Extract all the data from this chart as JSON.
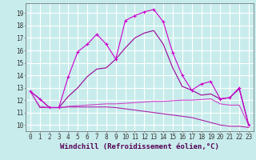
{
  "title": "",
  "xlabel": "Windchill (Refroidissement éolien,°C)",
  "background_color": "#c8ecec",
  "grid_color": "#ffffff",
  "line1": {
    "x": [
      0,
      1,
      2,
      3,
      4,
      5,
      6,
      7,
      8,
      9,
      10,
      11,
      12,
      13,
      14,
      15,
      16,
      17,
      18,
      19,
      20,
      21,
      22,
      23
    ],
    "y": [
      12.7,
      12.1,
      11.4,
      11.4,
      13.9,
      15.9,
      16.5,
      17.3,
      16.5,
      15.3,
      18.4,
      18.8,
      19.1,
      19.3,
      18.3,
      15.8,
      14.0,
      12.8,
      13.3,
      13.5,
      12.1,
      12.2,
      13.0,
      10.0
    ],
    "color": "#cc00cc",
    "marker": "+"
  },
  "line2": {
    "x": [
      0,
      1,
      2,
      3,
      4,
      5,
      6,
      7,
      8,
      9,
      10,
      11,
      12,
      13,
      14,
      15,
      16,
      17,
      18,
      19,
      20,
      21,
      22,
      23
    ],
    "y": [
      12.7,
      12.1,
      11.4,
      11.4,
      12.3,
      13.0,
      13.9,
      14.5,
      14.6,
      15.3,
      16.2,
      17.0,
      17.4,
      17.6,
      16.5,
      14.6,
      13.1,
      12.8,
      12.4,
      12.5,
      12.1,
      12.2,
      12.9,
      10.0
    ],
    "color": "#990099",
    "marker": null
  },
  "line3": {
    "x": [
      0,
      1,
      2,
      3,
      4,
      5,
      6,
      7,
      8,
      9,
      10,
      11,
      12,
      13,
      14,
      15,
      16,
      17,
      18,
      19,
      20,
      21,
      22,
      23
    ],
    "y": [
      12.7,
      11.5,
      11.4,
      11.4,
      11.5,
      11.55,
      11.6,
      11.65,
      11.7,
      11.7,
      11.75,
      11.8,
      11.85,
      11.9,
      11.9,
      11.95,
      12.0,
      12.0,
      12.05,
      12.1,
      11.7,
      11.6,
      11.6,
      10.0
    ],
    "color": "#cc44cc",
    "marker": null
  },
  "line4": {
    "x": [
      0,
      1,
      2,
      3,
      4,
      5,
      6,
      7,
      8,
      9,
      10,
      11,
      12,
      13,
      14,
      15,
      16,
      17,
      18,
      19,
      20,
      21,
      22,
      23
    ],
    "y": [
      12.7,
      11.4,
      11.4,
      11.4,
      11.45,
      11.45,
      11.45,
      11.45,
      11.45,
      11.4,
      11.3,
      11.2,
      11.1,
      11.0,
      10.9,
      10.8,
      10.7,
      10.6,
      10.4,
      10.2,
      10.0,
      9.9,
      9.9,
      9.8
    ],
    "color": "#aa22aa",
    "marker": null
  },
  "xlim": [
    -0.5,
    23.5
  ],
  "ylim": [
    9.5,
    19.8
  ],
  "yticks": [
    10,
    11,
    12,
    13,
    14,
    15,
    16,
    17,
    18,
    19
  ],
  "xticks": [
    0,
    1,
    2,
    3,
    4,
    5,
    6,
    7,
    8,
    9,
    10,
    11,
    12,
    13,
    14,
    15,
    16,
    17,
    18,
    19,
    20,
    21,
    22,
    23
  ],
  "tick_fontsize": 5.5,
  "xlabel_fontsize": 6.5
}
